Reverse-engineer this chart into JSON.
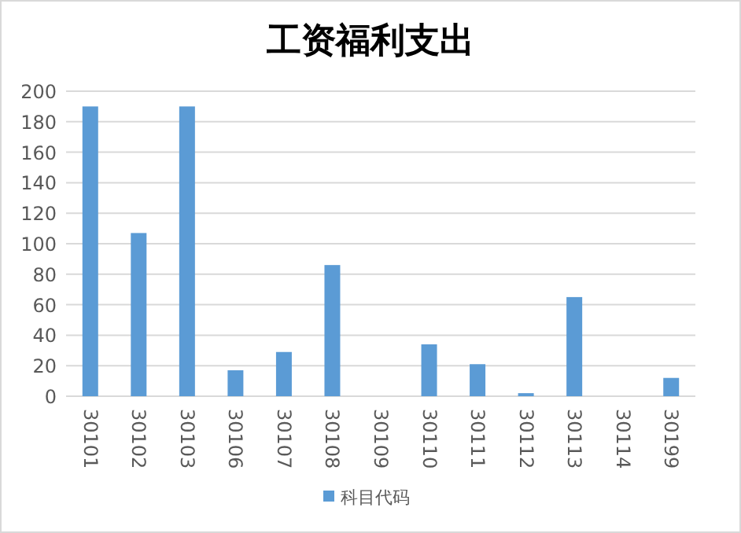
{
  "chart_data": {
    "type": "bar",
    "title": "工资福利支出",
    "categories": [
      "30101",
      "30102",
      "30103",
      "30106",
      "30107",
      "30108",
      "30109",
      "30110",
      "30111",
      "30112",
      "30113",
      "30114",
      "30199"
    ],
    "series": [
      {
        "name": "科目代码",
        "color": "#5b9bd5",
        "values": [
          190,
          107,
          190,
          17,
          29,
          86,
          0,
          34,
          21,
          2,
          65,
          0,
          12
        ]
      }
    ],
    "ylim": [
      0,
      200
    ],
    "yticks": [
      0,
      20,
      40,
      60,
      80,
      100,
      120,
      140,
      160,
      180,
      200
    ],
    "grid": "y",
    "legend": "bottom"
  }
}
